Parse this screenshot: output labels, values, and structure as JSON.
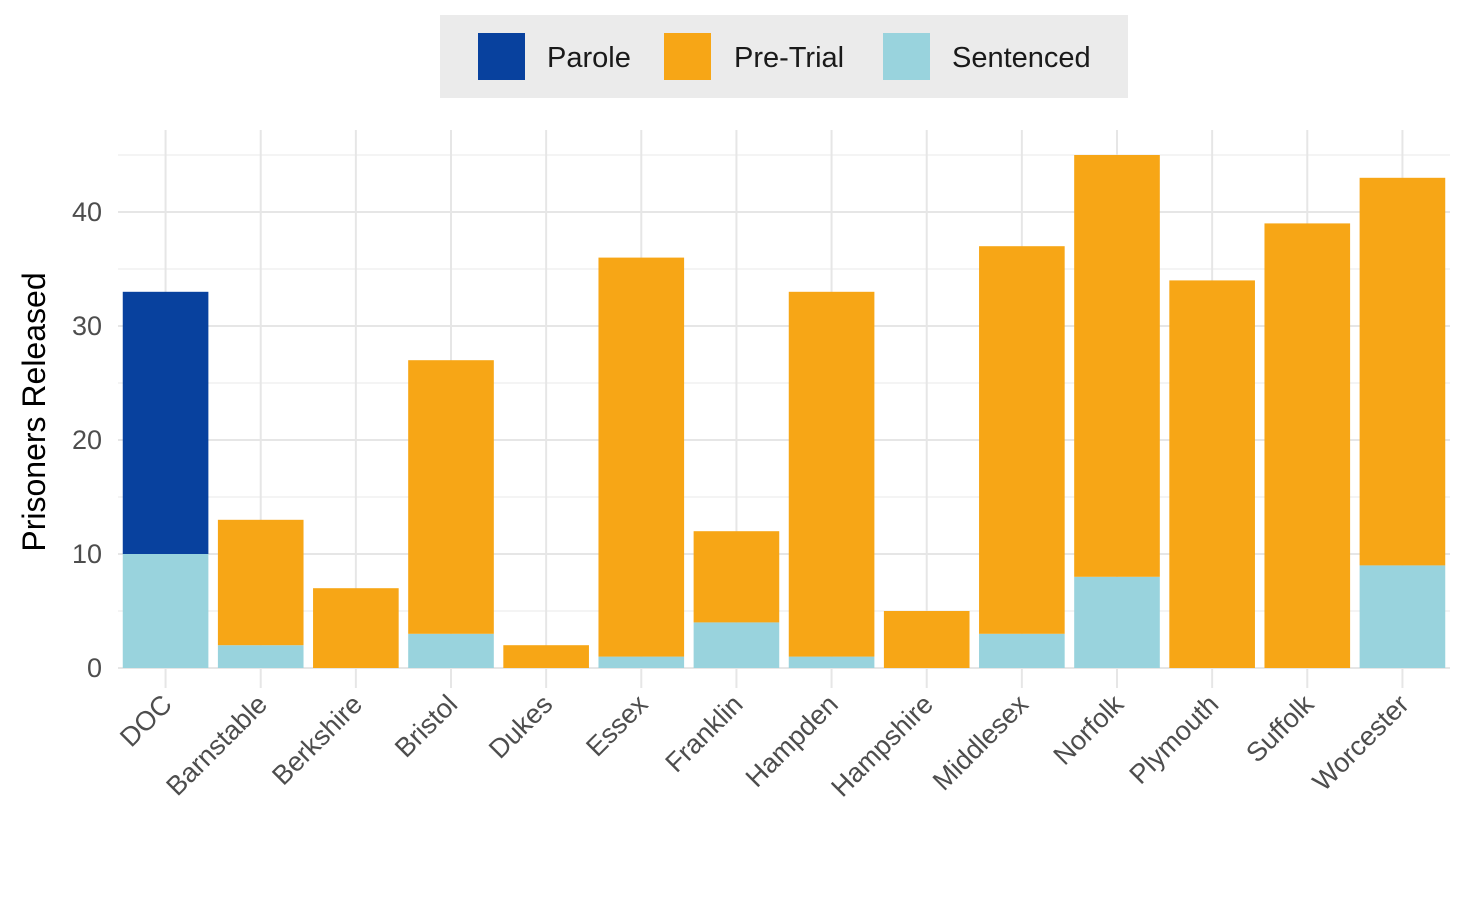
{
  "chart_data": {
    "type": "bar",
    "stacked": true,
    "categories": [
      "DOC",
      "Barnstable",
      "Berkshire",
      "Bristol",
      "Dukes",
      "Essex",
      "Franklin",
      "Hampden",
      "Hampshire",
      "Middlesex",
      "Norfolk",
      "Plymouth",
      "Suffolk",
      "Worcester"
    ],
    "series": [
      {
        "name": "Sentenced",
        "color": "#99d3dd",
        "values": [
          10,
          2,
          0,
          3,
          0,
          1,
          4,
          1,
          0,
          3,
          8,
          0,
          0,
          9
        ]
      },
      {
        "name": "Pre-Trial",
        "color": "#f7a616",
        "values": [
          0,
          11,
          7,
          24,
          2,
          35,
          8,
          32,
          5,
          34,
          37,
          34,
          39,
          34
        ]
      },
      {
        "name": "Parole",
        "color": "#08419e",
        "values": [
          23,
          0,
          0,
          0,
          0,
          0,
          0,
          0,
          0,
          0,
          0,
          0,
          0,
          0
        ]
      }
    ],
    "legend_order": [
      "Parole",
      "Pre-Trial",
      "Sentenced"
    ],
    "legend_position": "top",
    "title": "",
    "xlabel": "",
    "ylabel": "Prisoners Released",
    "ylim": [
      0,
      47
    ],
    "yticks": [
      0,
      10,
      20,
      30,
      40
    ],
    "grid": true
  }
}
